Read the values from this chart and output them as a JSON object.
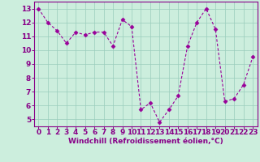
{
  "x": [
    0,
    1,
    2,
    3,
    4,
    5,
    6,
    7,
    8,
    9,
    10,
    11,
    12,
    13,
    14,
    15,
    16,
    17,
    18,
    19,
    20,
    21,
    22,
    23
  ],
  "y": [
    13.0,
    12.0,
    11.4,
    10.5,
    11.3,
    11.1,
    11.3,
    11.3,
    10.3,
    12.2,
    11.7,
    5.7,
    6.2,
    4.8,
    5.7,
    6.7,
    10.3,
    12.0,
    13.0,
    11.5,
    6.3,
    6.5,
    7.5,
    9.5
  ],
  "line_color": "#990099",
  "marker": "D",
  "markersize": 2.5,
  "linewidth": 0.8,
  "bg_color": "#cceedd",
  "grid_color": "#99ccbb",
  "xlabel": "Windchill (Refroidissement éolien,°C)",
  "xlabel_color": "#880088",
  "xlabel_fontsize": 6.5,
  "tick_color": "#880088",
  "tick_fontsize": 6.5,
  "ylim": [
    4.5,
    13.5
  ],
  "xlim": [
    -0.5,
    23.5
  ],
  "yticks": [
    5,
    6,
    7,
    8,
    9,
    10,
    11,
    12,
    13
  ],
  "xticks": [
    0,
    1,
    2,
    3,
    4,
    5,
    6,
    7,
    8,
    9,
    10,
    11,
    12,
    13,
    14,
    15,
    16,
    17,
    18,
    19,
    20,
    21,
    22,
    23
  ],
  "spine_color": "#880088"
}
